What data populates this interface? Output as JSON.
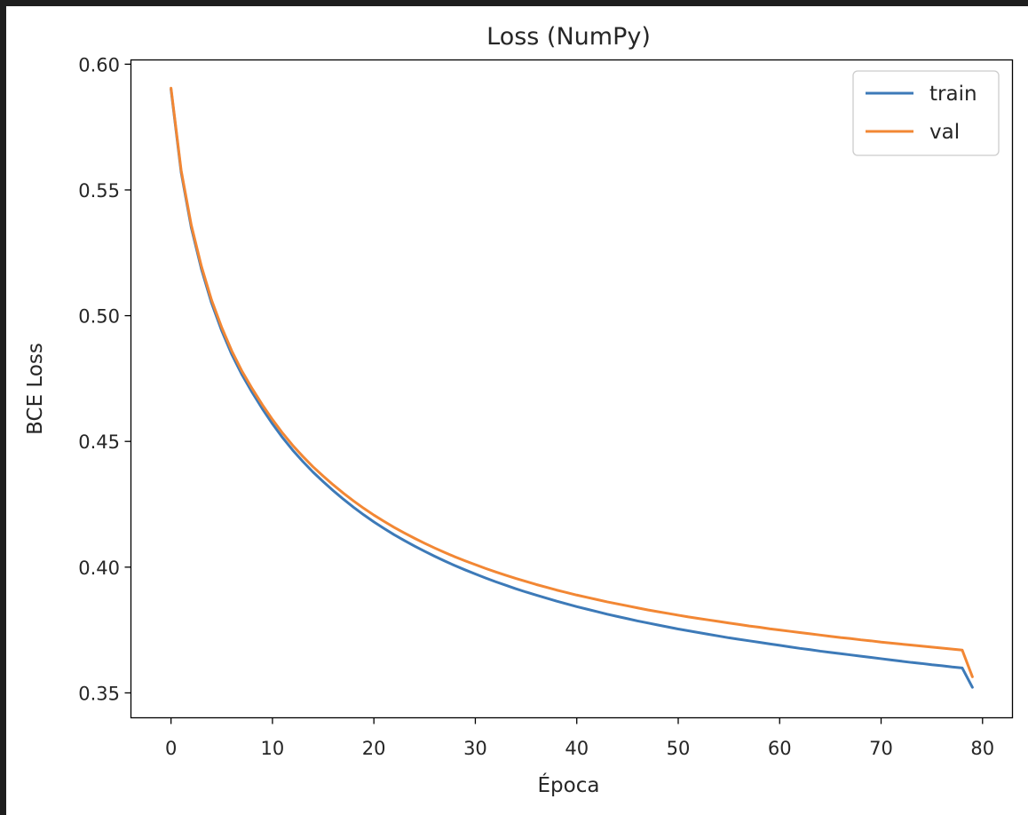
{
  "chart_data": {
    "type": "line",
    "title": "Loss (NumPy)",
    "xlabel": "Época",
    "ylabel": "BCE Loss",
    "xlim": [
      -3.95,
      82.95
    ],
    "ylim": [
      0.3401,
      0.6017
    ],
    "xticks": [
      0,
      10,
      20,
      30,
      40,
      50,
      60,
      70,
      80
    ],
    "yticks": [
      0.35,
      0.4,
      0.45,
      0.5,
      0.55,
      0.6
    ],
    "ytick_labels": [
      "0.35",
      "0.40",
      "0.45",
      "0.50",
      "0.55",
      "0.60"
    ],
    "grid": false,
    "legend": "top-right",
    "series": [
      {
        "name": "train",
        "color": "#3d7ab8",
        "x": [
          0,
          1,
          2,
          3,
          4,
          5,
          6,
          7,
          8,
          9,
          10,
          11,
          12,
          13,
          14,
          15,
          16,
          17,
          18,
          19,
          20,
          21,
          22,
          23,
          24,
          25,
          26,
          27,
          28,
          29,
          30,
          31,
          32,
          33,
          34,
          35,
          36,
          37,
          38,
          39,
          40,
          41,
          42,
          43,
          44,
          45,
          46,
          47,
          48,
          49,
          50,
          51,
          52,
          53,
          54,
          55,
          56,
          57,
          58,
          59,
          60,
          61,
          62,
          63,
          64,
          65,
          66,
          67,
          68,
          69,
          70,
          71,
          72,
          73,
          74,
          75,
          76,
          77,
          78,
          79
        ],
        "values": [
          0.59,
          0.557,
          0.535,
          0.5185,
          0.505,
          0.494,
          0.4845,
          0.4765,
          0.4695,
          0.463,
          0.457,
          0.4515,
          0.4465,
          0.442,
          0.4378,
          0.434,
          0.4304,
          0.427,
          0.4238,
          0.4208,
          0.418,
          0.4154,
          0.4129,
          0.4106,
          0.4084,
          0.4063,
          0.4043,
          0.4024,
          0.4006,
          0.3989,
          0.3973,
          0.3957,
          0.3942,
          0.3928,
          0.3914,
          0.3901,
          0.3889,
          0.3877,
          0.3865,
          0.3854,
          0.3843,
          0.3833,
          0.3823,
          0.3813,
          0.3804,
          0.3795,
          0.3786,
          0.3778,
          0.377,
          0.3762,
          0.3754,
          0.3747,
          0.374,
          0.3733,
          0.3726,
          0.3719,
          0.3713,
          0.3707,
          0.3701,
          0.3695,
          0.3689,
          0.3683,
          0.3677,
          0.3672,
          0.3666,
          0.3661,
          0.3656,
          0.3651,
          0.3646,
          0.3641,
          0.3636,
          0.3631,
          0.3626,
          0.3621,
          0.3617,
          0.3612,
          0.3608,
          0.3603,
          0.3599,
          0.3522
        ]
      },
      {
        "name": "val",
        "color": "#f28734",
        "x": [
          0,
          1,
          2,
          3,
          4,
          5,
          6,
          7,
          8,
          9,
          10,
          11,
          12,
          13,
          14,
          15,
          16,
          17,
          18,
          19,
          20,
          21,
          22,
          23,
          24,
          25,
          26,
          27,
          28,
          29,
          30,
          31,
          32,
          33,
          34,
          35,
          36,
          37,
          38,
          39,
          40,
          41,
          42,
          43,
          44,
          45,
          46,
          47,
          48,
          49,
          50,
          51,
          52,
          53,
          54,
          55,
          56,
          57,
          58,
          59,
          60,
          61,
          62,
          63,
          64,
          65,
          66,
          67,
          68,
          69,
          70,
          71,
          72,
          73,
          74,
          75,
          76,
          77,
          78,
          79
        ],
        "values": [
          0.5905,
          0.5578,
          0.536,
          0.5196,
          0.5062,
          0.4953,
          0.4859,
          0.4779,
          0.471,
          0.4646,
          0.4587,
          0.4533,
          0.4484,
          0.444,
          0.4399,
          0.4362,
          0.4327,
          0.4294,
          0.4263,
          0.4234,
          0.4207,
          0.4182,
          0.4158,
          0.4136,
          0.4115,
          0.4095,
          0.4076,
          0.4058,
          0.4041,
          0.4025,
          0.401,
          0.3995,
          0.3981,
          0.3968,
          0.3955,
          0.3943,
          0.3931,
          0.392,
          0.3909,
          0.3899,
          0.3889,
          0.388,
          0.3871,
          0.3862,
          0.3854,
          0.3846,
          0.3838,
          0.383,
          0.3823,
          0.3816,
          0.3809,
          0.3802,
          0.3796,
          0.379,
          0.3784,
          0.3778,
          0.3772,
          0.3766,
          0.3761,
          0.3755,
          0.375,
          0.3745,
          0.374,
          0.3735,
          0.373,
          0.3725,
          0.372,
          0.3716,
          0.3711,
          0.3707,
          0.3702,
          0.3698,
          0.3694,
          0.369,
          0.3686,
          0.3682,
          0.3678,
          0.3674,
          0.367,
          0.3564
        ]
      }
    ]
  }
}
